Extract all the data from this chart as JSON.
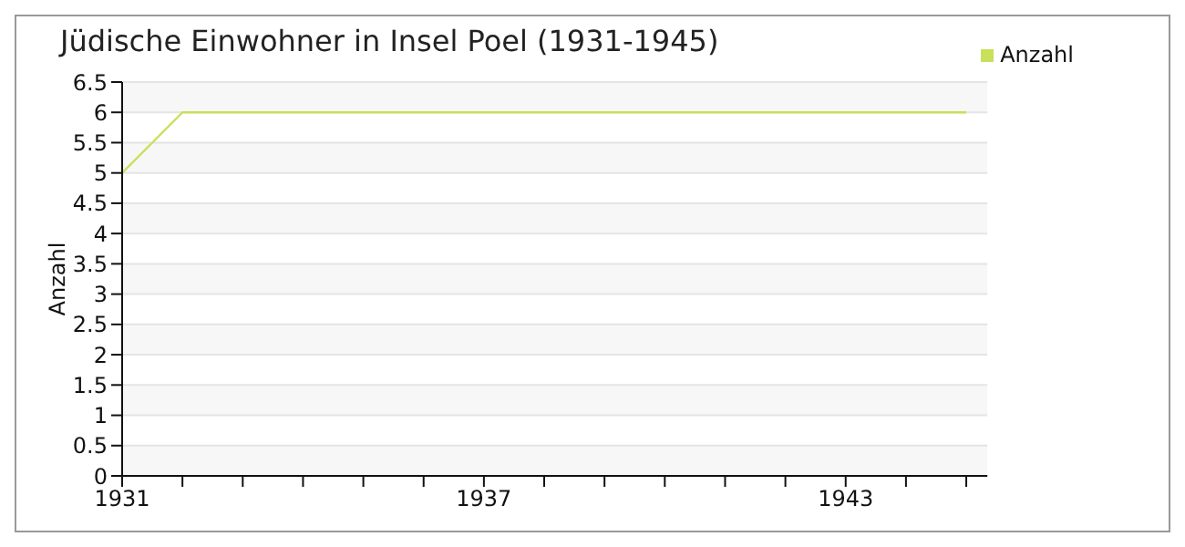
{
  "chart_data": {
    "type": "line",
    "title": "Jüdische Einwohner in Insel Poel (1931-1945)",
    "ylabel": "Anzahl",
    "x": [
      1931,
      1932,
      1933,
      1934,
      1935,
      1936,
      1937,
      1938,
      1939,
      1940,
      1941,
      1942,
      1943,
      1944,
      1945
    ],
    "series": [
      {
        "name": "Anzahl",
        "color": "#c8e05a",
        "values": [
          5,
          6,
          6,
          6,
          6,
          6,
          6,
          6,
          6,
          6,
          6,
          6,
          6,
          6,
          6
        ]
      }
    ],
    "xlim": [
      1931,
      1945.35
    ],
    "xticks": [
      1931,
      {
        "value": 1932,
        "label": null
      },
      {
        "value": 1933,
        "label": null
      },
      {
        "value": 1934,
        "label": null
      },
      {
        "value": 1935,
        "label": null
      },
      {
        "value": 1936,
        "label": null
      },
      1937,
      {
        "value": 1938,
        "label": null
      },
      {
        "value": 1939,
        "label": null
      },
      {
        "value": 1940,
        "label": null
      },
      {
        "value": 1941,
        "label": null
      },
      {
        "value": 1942,
        "label": null
      },
      1943,
      {
        "value": 1944,
        "label": null
      },
      {
        "value": 1945,
        "label": null
      }
    ],
    "ylim": [
      0,
      6.5
    ],
    "yticks": [
      0,
      0.5,
      1,
      1.5,
      2,
      2.5,
      3,
      3.5,
      4,
      4.5,
      5,
      5.5,
      6,
      6.5
    ],
    "grid": "y",
    "legend": "top right",
    "marker": "none",
    "line_style": "solid"
  }
}
